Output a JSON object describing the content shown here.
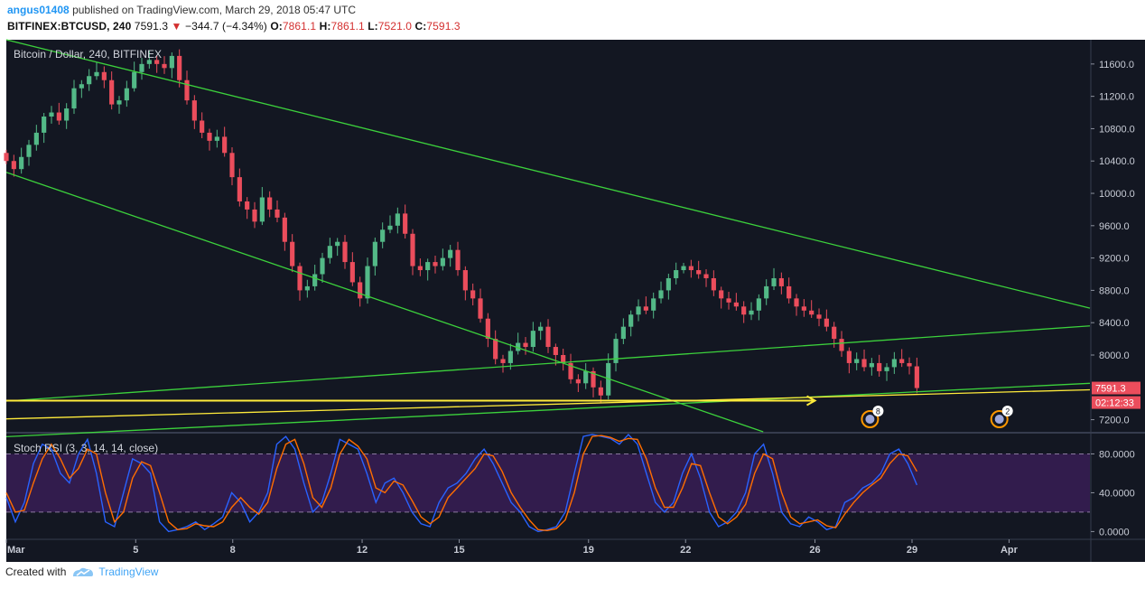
{
  "header": {
    "user": "angus01408",
    "published_text": "published on TradingView.com, March 29, 2018 05:47 UTC",
    "symbol": "BITFINEX:BTCUSD, 240",
    "last": "7591.3",
    "change": "−344.7 (−4.34%)",
    "o_label": "O:",
    "o": "7861.1",
    "h_label": "H:",
    "h": "7861.1",
    "l_label": "L:",
    "l": "7521.0",
    "c_label": "C:",
    "c": "7591.3"
  },
  "footer": {
    "created_with": "Created with",
    "brand": "TradingView"
  },
  "chart_data": [
    {
      "type": "candlestick",
      "title": "Bitcoin / Dollar, 240, BITFINEX",
      "ylim": [
        7050,
        11900
      ],
      "y_ticks": [
        "11600.0",
        "11200.0",
        "10800.0",
        "10400.0",
        "10000.0",
        "9600.0",
        "9200.0",
        "8800.0",
        "8400.0",
        "8000.0",
        "7200.0"
      ],
      "y_tick_values": [
        11600,
        11200,
        10800,
        10400,
        10000,
        9600,
        9200,
        8800,
        8400,
        8000,
        7200
      ],
      "x_ticks": [
        "Mar",
        "5",
        "8",
        "12",
        "15",
        "19",
        "22",
        "26",
        "29",
        "Apr"
      ],
      "x_tick_days": [
        1,
        5,
        8,
        12,
        15,
        19,
        22,
        26,
        29,
        32
      ],
      "x_range_days": [
        1.0,
        34.5
      ],
      "price_label": "7591.3",
      "countdown_label": "02:12:33",
      "event_badges": [
        "8",
        "2"
      ],
      "event_badge_days": [
        27.7,
        31.7
      ],
      "close_series": [
        10400,
        10300,
        10450,
        10600,
        10750,
        10950,
        11000,
        10900,
        11050,
        11300,
        11350,
        11450,
        11500,
        11400,
        11100,
        11150,
        11300,
        11500,
        11600,
        11650,
        11600,
        11550,
        11700,
        11400,
        11150,
        10900,
        10750,
        10650,
        10700,
        10500,
        10200,
        9900,
        9800,
        9650,
        9950,
        9800,
        9700,
        9400,
        9100,
        8800,
        8850,
        9000,
        9200,
        9350,
        9400,
        9150,
        8900,
        8700,
        9100,
        9400,
        9550,
        9600,
        9750,
        9500,
        9100,
        9050,
        9150,
        9100,
        9200,
        9300,
        9050,
        8800,
        8700,
        8450,
        8200,
        7950,
        7900,
        8050,
        8150,
        8100,
        8300,
        8350,
        8100,
        8000,
        7900,
        7700,
        7650,
        7800,
        7600,
        7500,
        7900,
        8200,
        8350,
        8500,
        8600,
        8550,
        8700,
        8800,
        8950,
        9050,
        9100,
        9050,
        9000,
        8950,
        8800,
        8700,
        8650,
        8600,
        8500,
        8550,
        8700,
        8850,
        8950,
        8850,
        8700,
        8600,
        8550,
        8500,
        8450,
        8350,
        8200,
        8050,
        7900,
        7950,
        7850,
        7900,
        7800,
        7850,
        7950,
        7900,
        7860,
        7591.3
      ],
      "trendlines": [
        {
          "color": "#3cd13c",
          "from": [
            1.0,
            11900
          ],
          "to": [
            34.5,
            8580
          ]
        },
        {
          "color": "#3cd13c",
          "from": [
            1.0,
            10260
          ],
          "to": [
            24.4,
            7050
          ]
        },
        {
          "color": "#3cd13c",
          "from": [
            1.0,
            7430
          ],
          "to": [
            34.5,
            8360
          ]
        },
        {
          "color": "#3cd13c",
          "from": [
            1.0,
            6990
          ],
          "to": [
            34.5,
            7650
          ]
        },
        {
          "color": "#ffeb3b",
          "from": [
            1.0,
            7210
          ],
          "to": [
            34.5,
            7570
          ]
        }
      ],
      "horizontal_line": {
        "color": "#ffeb3b",
        "value": 7435,
        "from_day": 1.0,
        "to_day": 26.0
      }
    },
    {
      "type": "line",
      "title": "Stoch RSI (3, 3, 14, 14, close)",
      "ylim": [
        -8,
        100
      ],
      "y_ticks": [
        "80.0000",
        "40.0000",
        "0.0000"
      ],
      "y_tick_values": [
        80,
        40,
        0
      ],
      "band": [
        20,
        80
      ],
      "series": [
        {
          "color": "#2962ff",
          "values": [
            35,
            10,
            30,
            70,
            90,
            85,
            60,
            50,
            80,
            95,
            60,
            10,
            5,
            40,
            75,
            70,
            60,
            10,
            0,
            2,
            5,
            10,
            2,
            8,
            15,
            40,
            30,
            10,
            20,
            40,
            90,
            98,
            85,
            50,
            20,
            30,
            60,
            95,
            90,
            85,
            60,
            30,
            50,
            55,
            40,
            20,
            8,
            5,
            30,
            45,
            50,
            60,
            75,
            85,
            70,
            50,
            30,
            20,
            5,
            0,
            2,
            5,
            20,
            60,
            98,
            100,
            98,
            96,
            90,
            100,
            90,
            60,
            30,
            20,
            30,
            60,
            80,
            55,
            20,
            5,
            10,
            20,
            40,
            80,
            90,
            60,
            20,
            8,
            5,
            15,
            10,
            2,
            5,
            30,
            35,
            45,
            50,
            60,
            80,
            85,
            70,
            48
          ]
        },
        {
          "color": "#ff6d00",
          "values": [
            40,
            20,
            22,
            50,
            75,
            90,
            75,
            55,
            65,
            85,
            80,
            40,
            10,
            20,
            55,
            72,
            68,
            40,
            10,
            2,
            3,
            8,
            6,
            5,
            10,
            25,
            35,
            25,
            18,
            30,
            65,
            90,
            95,
            70,
            35,
            25,
            45,
            80,
            95,
            88,
            75,
            45,
            40,
            52,
            48,
            32,
            15,
            8,
            15,
            35,
            45,
            55,
            65,
            80,
            78,
            62,
            40,
            25,
            12,
            2,
            1,
            3,
            12,
            40,
            80,
            98,
            99,
            97,
            93,
            96,
            95,
            75,
            45,
            25,
            25,
            45,
            70,
            68,
            40,
            15,
            8,
            15,
            28,
            60,
            80,
            75,
            40,
            15,
            8,
            10,
            12,
            6,
            4,
            18,
            30,
            40,
            48,
            55,
            70,
            80,
            78,
            62
          ]
        }
      ]
    }
  ]
}
